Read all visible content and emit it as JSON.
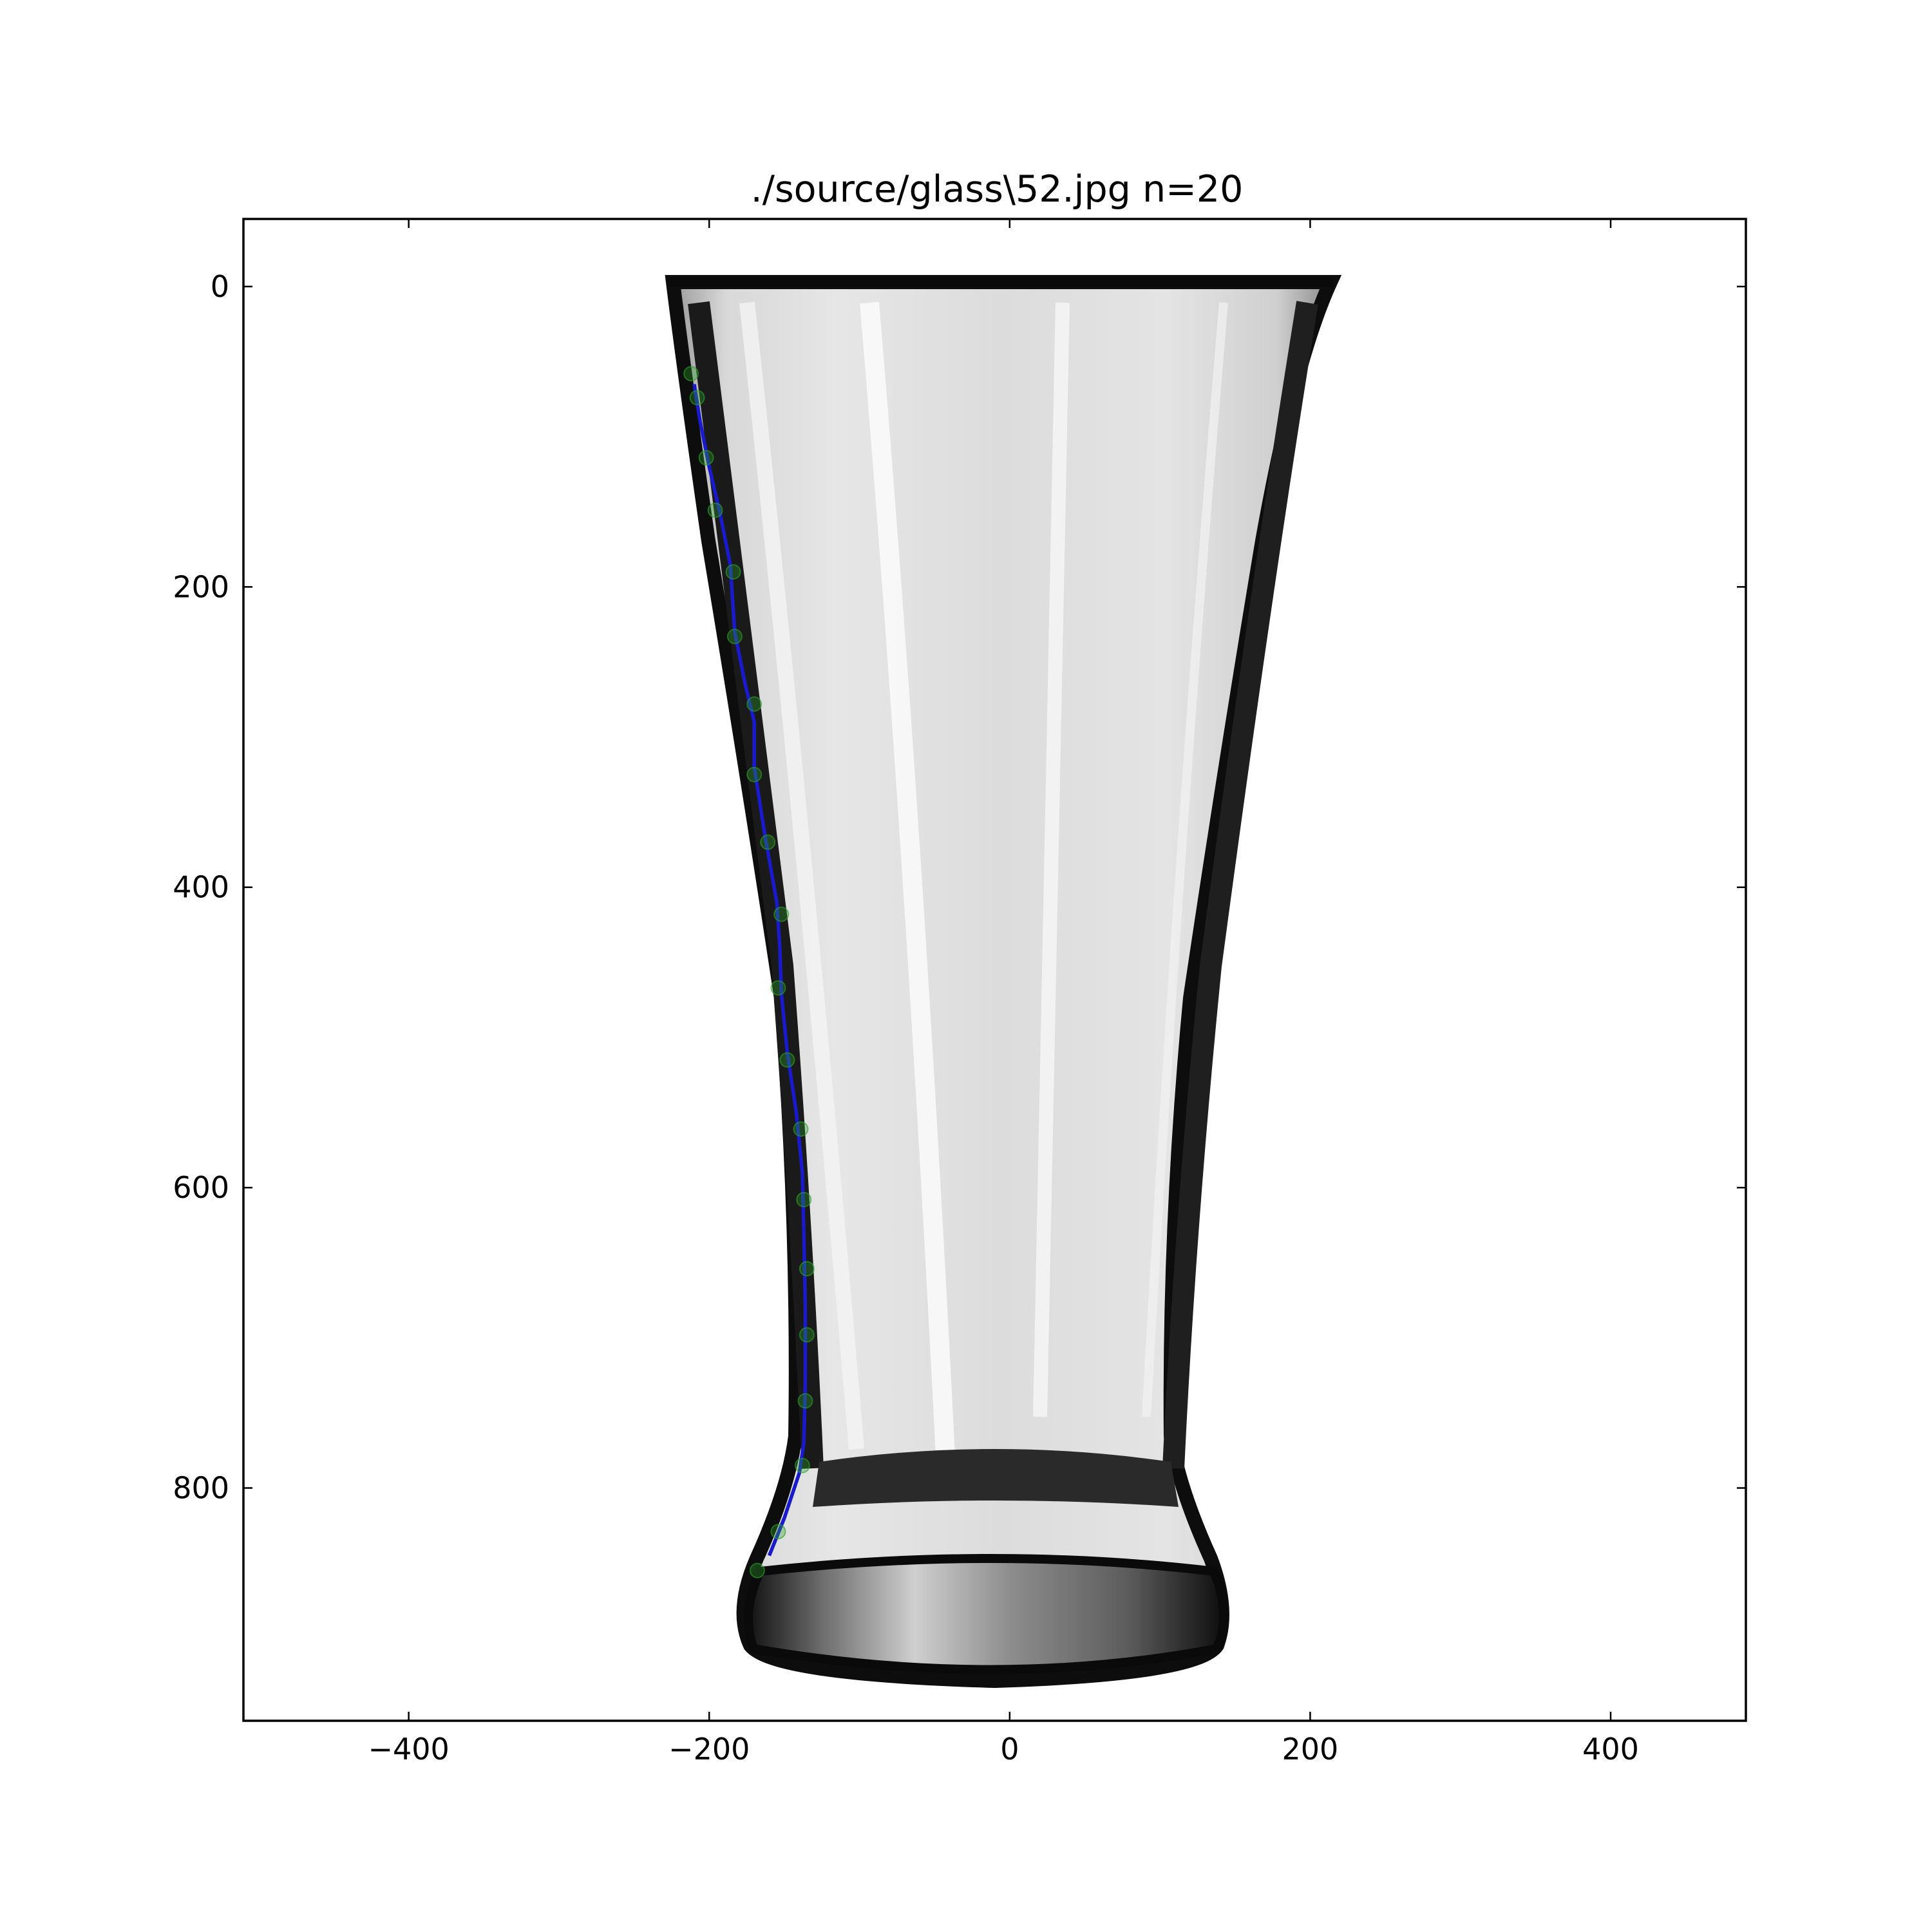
{
  "chart_data": {
    "type": "scatter",
    "title": "./source/glass\\52.jpg n=20",
    "xlabel": "",
    "ylabel": "",
    "xlim": [
      -510,
      490
    ],
    "ylim": [
      -45,
      955
    ],
    "y_inverted": true,
    "grid": false,
    "x_ticks": [
      -400,
      -200,
      0,
      200,
      400
    ],
    "x_tick_labels": [
      "−400",
      "−200",
      "0",
      "200",
      "400"
    ],
    "y_ticks": [
      0,
      200,
      400,
      600,
      800
    ],
    "y_tick_labels": [
      "0",
      "200",
      "400",
      "600",
      "800"
    ],
    "background_image": "glass-photo",
    "series": [
      {
        "kind": "points",
        "color": "#2ca02c",
        "x": [
          -212,
          -208,
          -202,
          -196,
          -184,
          -183,
          -170,
          -170,
          -161,
          -152,
          -154,
          -148,
          -139,
          -137,
          -135,
          -135,
          -136,
          -138,
          -154,
          -168
        ],
        "y": [
          58,
          74,
          114,
          149,
          190,
          233,
          278,
          325,
          370,
          418,
          467,
          515,
          561,
          608,
          654,
          698,
          742,
          785,
          829,
          855
        ]
      },
      {
        "kind": "curve",
        "color": "#1a1acc",
        "x": [
          -210,
          -206,
          -200,
          -193,
          -186,
          -183,
          -176,
          -170,
          -170,
          -163,
          -155,
          -153,
          -152,
          -148,
          -142,
          -138,
          -137,
          -136,
          -136,
          -137,
          -140,
          -150,
          -160
        ],
        "y": [
          65,
          90,
          120,
          150,
          185,
          230,
          265,
          290,
          320,
          365,
          410,
          440,
          470,
          510,
          550,
          590,
          630,
          680,
          730,
          770,
          790,
          820,
          845
        ]
      }
    ]
  }
}
